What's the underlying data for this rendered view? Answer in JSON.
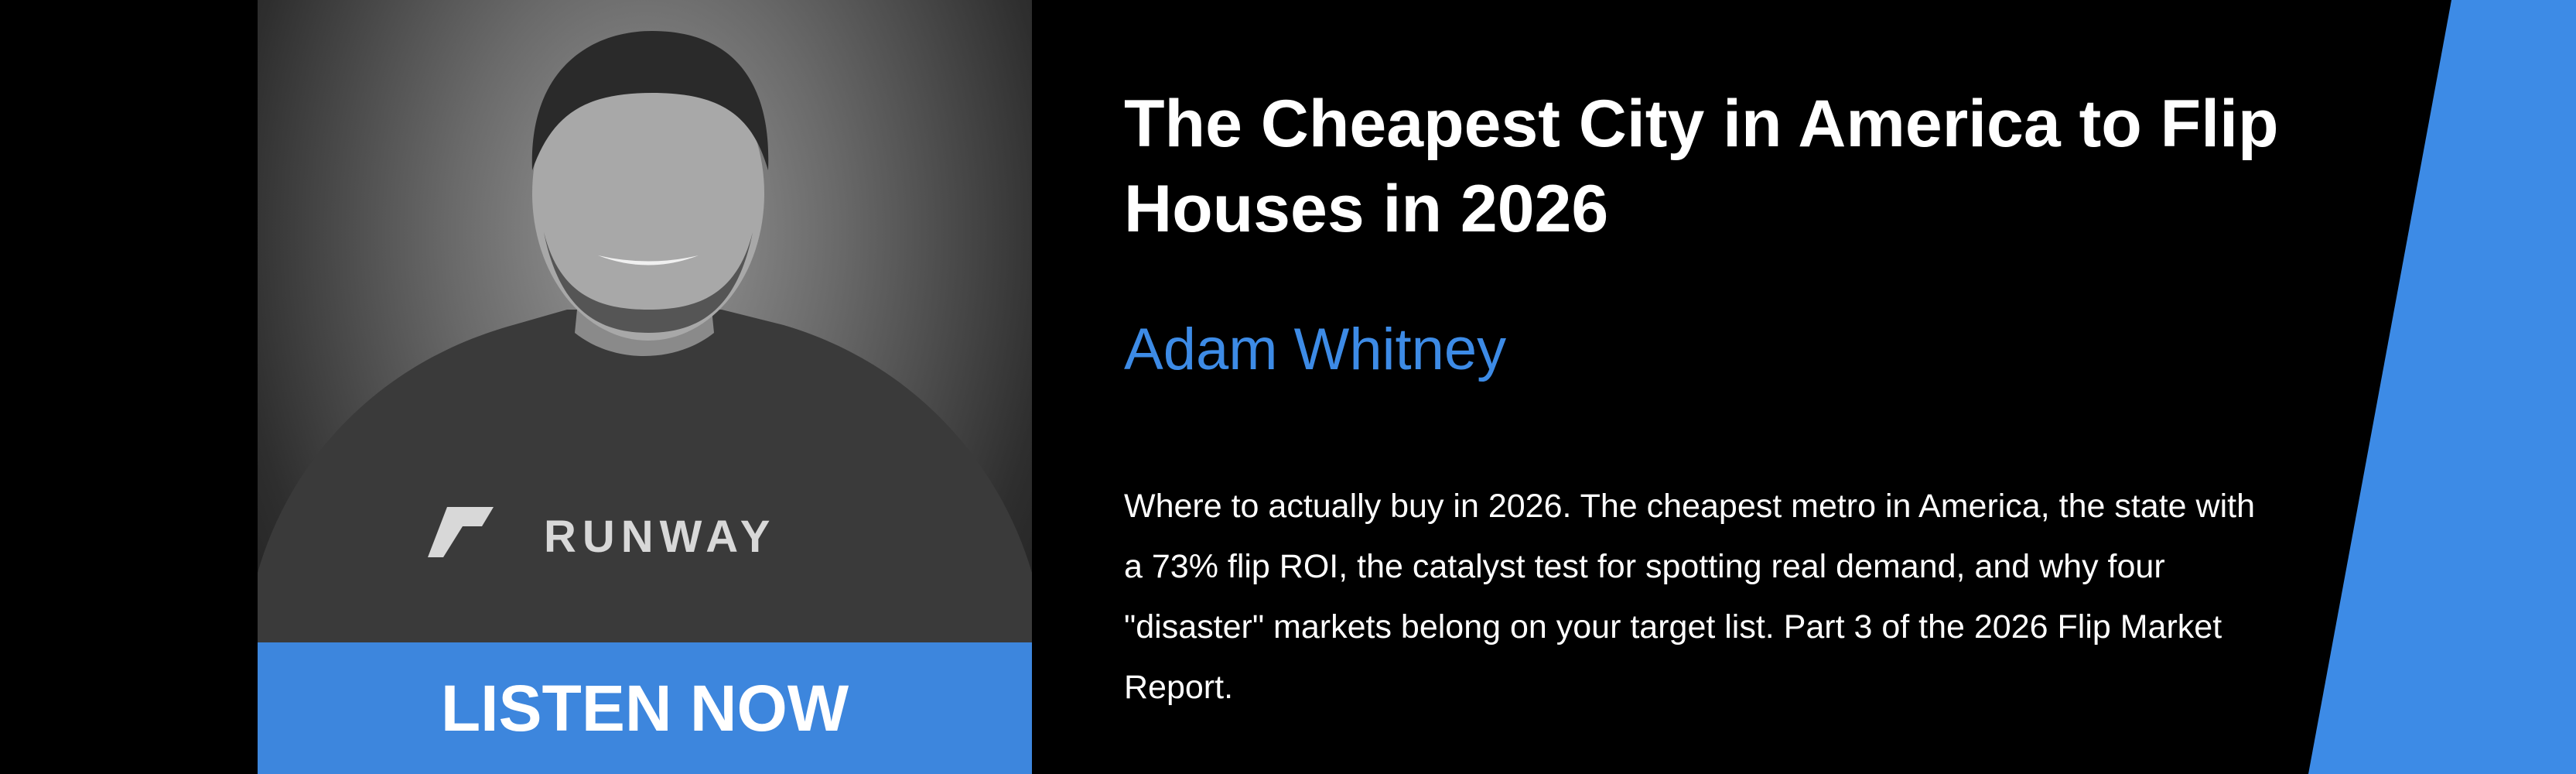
{
  "banner": {
    "title": "The Cheapest City in America to Flip Houses in 2026",
    "author": "Adam Whitney",
    "description": "Where to actually buy in 2026. The cheapest metro in America, the state with a 73% flip ROI, the catalyst test for spotting real demand, and why four \"disaster\" markets belong on your target list. Part 3 of the 2026 Flip Market Report.",
    "button": "LISTEN NOW",
    "photo_logo": "RUNWAY"
  }
}
